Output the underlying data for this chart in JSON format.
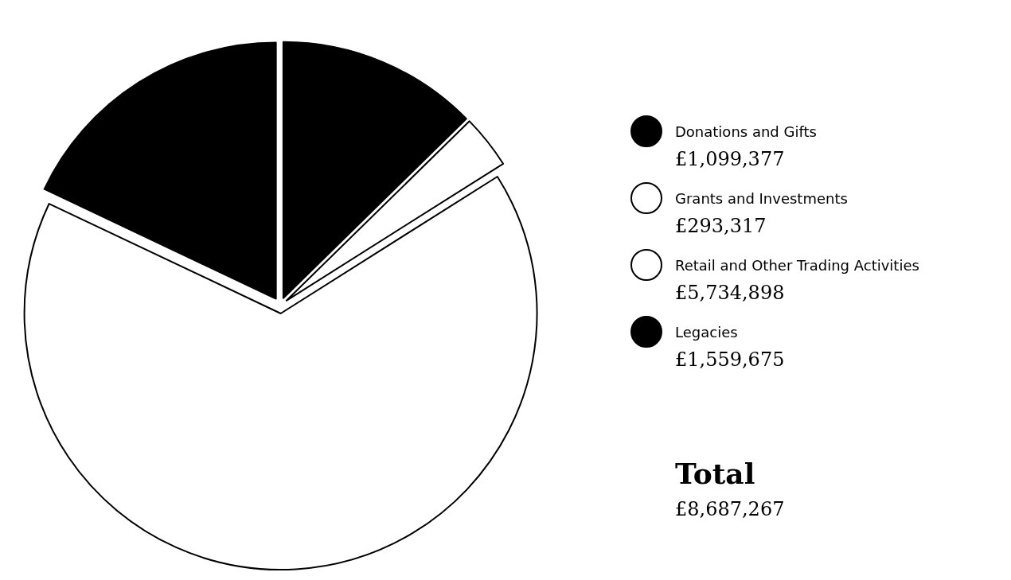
{
  "chart_data": {
    "type": "pie",
    "categories": [
      "Donations and Gifts",
      "Grants and Investments",
      "Retail and Other Trading Activities",
      "Legacies"
    ],
    "values": [
      1099377,
      293317,
      5734898,
      1559675
    ],
    "value_labels": [
      "£1,099,377",
      "£293,317",
      "£5,734,898",
      "£1,559,675"
    ],
    "colors": [
      "#000000",
      "#ffffff",
      "#ffffff",
      "#000000"
    ],
    "legend": "right",
    "annotations": [
      "Total",
      "£8,687,267"
    ]
  }
}
